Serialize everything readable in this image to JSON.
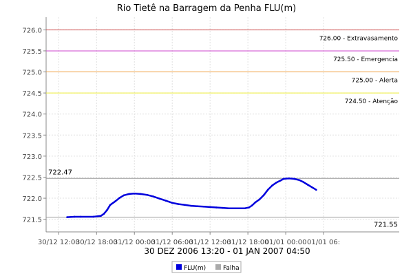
{
  "chart_data": {
    "type": "line",
    "title": "Rio Tietê na Barragem da Penha FLU(m)",
    "xlabel": "30 DEZ 2006 13:20 - 01 JAN 2007 04:50",
    "ylabel": "",
    "ylim": [
      721.2,
      726.3
    ],
    "xlim": [
      "2006-12-30T10:00",
      "2007-01-01T18:00"
    ],
    "grid": true,
    "legend_position": "bottom-center",
    "y_ticks": [
      "721.5",
      "722.0",
      "722.5",
      "723.0",
      "723.5",
      "724.0",
      "724.5",
      "725.0",
      "725.5",
      "726.0"
    ],
    "x_ticks": [
      {
        "t": "2006-12-30T12:00",
        "label": "30/12 12:00"
      },
      {
        "t": "2006-12-30T18:00",
        "label": "30/12 18:00"
      },
      {
        "t": "2006-12-31T00:00",
        "label": "31/12 00:00"
      },
      {
        "t": "2006-12-31T06:00",
        "label": "31/12 06:00"
      },
      {
        "t": "2006-12-31T12:00",
        "label": "31/12 12:00"
      },
      {
        "t": "2006-12-31T18:00",
        "label": "31/12 18:00"
      },
      {
        "t": "2007-01-01T00:00",
        "label": "01/01 00:00"
      },
      {
        "t": "2007-01-01T06:00",
        "label": "01/01 06:"
      }
    ],
    "thresholds": [
      {
        "value": 726.0,
        "label": "726.00 - Extravasamento",
        "color": "#cc4444"
      },
      {
        "value": 725.5,
        "label": "725.50 - Emergencia",
        "color": "#cc44cc"
      },
      {
        "value": 725.0,
        "label": "725.00 - Alerta",
        "color": "#ee9933"
      },
      {
        "value": 724.5,
        "label": "724.50 - Atenção",
        "color": "#eeee33"
      }
    ],
    "markers": [
      {
        "value": 722.47,
        "label": "722.47",
        "color": "#999999",
        "label_side": "left"
      },
      {
        "value": 721.55,
        "label": "721.55",
        "color": "#999999",
        "label_side": "right"
      }
    ],
    "series": [
      {
        "name": "FLU(m)",
        "color": "#0000dd",
        "points": [
          {
            "t": "2006-12-30T13:20",
            "y": 721.55
          },
          {
            "t": "2006-12-30T14:30",
            "y": 721.56
          },
          {
            "t": "2006-12-30T15:30",
            "y": 721.56
          },
          {
            "t": "2006-12-30T17:30",
            "y": 721.56
          },
          {
            "t": "2006-12-30T18:40",
            "y": 721.58
          },
          {
            "t": "2006-12-30T19:10",
            "y": 721.63
          },
          {
            "t": "2006-12-30T19:40",
            "y": 721.72
          },
          {
            "t": "2006-12-30T20:10",
            "y": 721.84
          },
          {
            "t": "2006-12-30T21:00",
            "y": 721.93
          },
          {
            "t": "2006-12-30T21:40",
            "y": 722.01
          },
          {
            "t": "2006-12-30T22:20",
            "y": 722.07
          },
          {
            "t": "2006-12-30T23:10",
            "y": 722.1
          },
          {
            "t": "2006-12-31T00:00",
            "y": 722.11
          },
          {
            "t": "2006-12-31T01:00",
            "y": 722.1
          },
          {
            "t": "2006-12-31T02:00",
            "y": 722.08
          },
          {
            "t": "2006-12-31T03:00",
            "y": 722.04
          },
          {
            "t": "2006-12-31T04:00",
            "y": 721.99
          },
          {
            "t": "2006-12-31T05:00",
            "y": 721.94
          },
          {
            "t": "2006-12-31T06:00",
            "y": 721.89
          },
          {
            "t": "2006-12-31T07:00",
            "y": 721.86
          },
          {
            "t": "2006-12-31T08:00",
            "y": 721.84
          },
          {
            "t": "2006-12-31T09:00",
            "y": 721.82
          },
          {
            "t": "2006-12-31T10:00",
            "y": 721.81
          },
          {
            "t": "2006-12-31T11:00",
            "y": 721.8
          },
          {
            "t": "2006-12-31T12:00",
            "y": 721.79
          },
          {
            "t": "2006-12-31T13:00",
            "y": 721.78
          },
          {
            "t": "2006-12-31T14:00",
            "y": 721.77
          },
          {
            "t": "2006-12-31T15:00",
            "y": 721.76
          },
          {
            "t": "2006-12-31T16:30",
            "y": 721.76
          },
          {
            "t": "2006-12-31T17:30",
            "y": 721.76
          },
          {
            "t": "2006-12-31T18:10",
            "y": 721.78
          },
          {
            "t": "2006-12-31T18:40",
            "y": 721.83
          },
          {
            "t": "2006-12-31T19:10",
            "y": 721.9
          },
          {
            "t": "2006-12-31T19:50",
            "y": 721.97
          },
          {
            "t": "2006-12-31T20:30",
            "y": 722.07
          },
          {
            "t": "2006-12-31T21:10",
            "y": 722.2
          },
          {
            "t": "2006-12-31T21:50",
            "y": 722.3
          },
          {
            "t": "2006-12-31T22:30",
            "y": 722.37
          },
          {
            "t": "2006-12-31T23:10",
            "y": 722.42
          },
          {
            "t": "2006-12-31T23:40",
            "y": 722.46
          },
          {
            "t": "2007-01-01T00:30",
            "y": 722.47
          },
          {
            "t": "2007-01-01T01:20",
            "y": 722.46
          },
          {
            "t": "2007-01-01T02:10",
            "y": 722.43
          },
          {
            "t": "2007-01-01T02:50",
            "y": 722.38
          },
          {
            "t": "2007-01-01T03:30",
            "y": 722.32
          },
          {
            "t": "2007-01-01T04:10",
            "y": 722.26
          },
          {
            "t": "2007-01-01T04:50",
            "y": 722.2
          }
        ]
      },
      {
        "name": "Falha",
        "color": "#aaaaaa",
        "points": []
      }
    ]
  }
}
